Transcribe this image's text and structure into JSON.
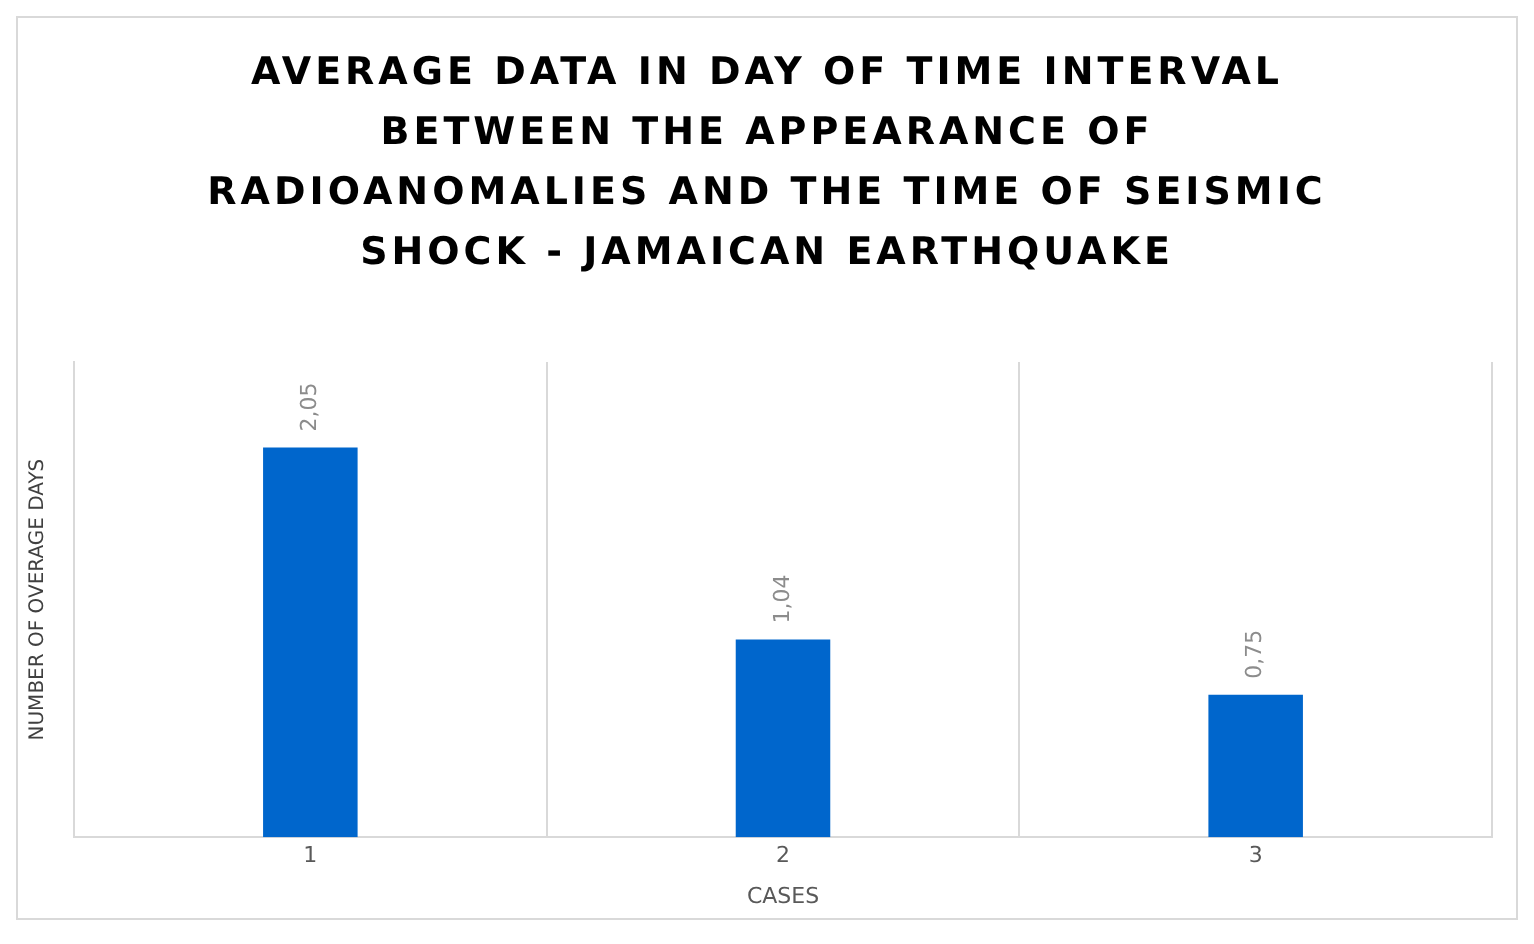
{
  "chart_data": {
    "type": "bar",
    "title": "AVERAGE DATA IN DAY OF TIME INTERVAL BETWEEN THE APPEARANCE OF RADIOANOMALIES AND THE TIME OF SEISMIC SHOCK - JAMAICAN EARTHQUAKE",
    "xlabel": "CASES",
    "ylabel": "NUMBER OF OVERAGE DAYS",
    "categories": [
      "1",
      "2",
      "3"
    ],
    "values": [
      2.05,
      1.04,
      0.75
    ],
    "value_labels": [
      "2,05",
      "1,04",
      "0,75"
    ],
    "color": "#0066cc",
    "grid": "x",
    "tick_labels": "x"
  }
}
